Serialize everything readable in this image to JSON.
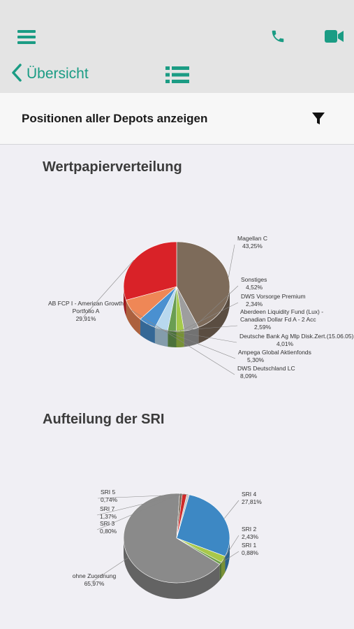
{
  "header": {
    "back_label": "Übersicht",
    "icons": [
      "menu-icon",
      "phone-icon",
      "video-icon",
      "list-icon",
      "chevron-left-icon",
      "filter-icon"
    ],
    "accent_color": "#1b9c84"
  },
  "filter": {
    "title": "Positionen aller Depots anzeigen"
  },
  "chart_data": [
    {
      "type": "pie",
      "title": "Wertpapierverteilung",
      "slices": [
        {
          "name": "Magellan C",
          "value": 43.25,
          "label": "43,25%",
          "color": "#7d6b5a"
        },
        {
          "name": "Sonstiges",
          "value": 4.52,
          "label": "4,52%",
          "color": "#9e9e9e"
        },
        {
          "name": "DWS Vorsorge Premium",
          "value": 2.34,
          "label": "2,34%",
          "color": "#a5c94a"
        },
        {
          "name": "Aberdeen Liquidity Fund (Lux) - Canadian Dollar Fd A - 2 Acc",
          "lines": [
            "Aberdeen Liquidity Fund (Lux) -",
            "Canadian Dollar Fd A - 2 Acc"
          ],
          "value": 2.59,
          "label": "2,59%",
          "color": "#6a9e52"
        },
        {
          "name": "Deutsche Bank Ag Mlp Disk.Zert.(15.06.05)",
          "value": 4.01,
          "label": "4,01%",
          "color": "#b8d8ee"
        },
        {
          "name": "Ampega Global Aktienfonds",
          "value": 5.3,
          "label": "5,30%",
          "color": "#4a90d0"
        },
        {
          "name": "DWS Deutschland LC",
          "value": 8.09,
          "label": "8,09%",
          "color": "#ef8756"
        },
        {
          "name": "AB FCP I - American Growth Portfolio A",
          "lines": [
            "AB FCP I - American Growth",
            "Portfolio A"
          ],
          "value": 29.91,
          "label": "29,91%",
          "color": "#d92228"
        }
      ]
    },
    {
      "type": "pie",
      "title": "Aufteilung der SRI",
      "slices": [
        {
          "name": "SRI 4",
          "value": 27.81,
          "label": "27,81%",
          "color": "#3d88c4"
        },
        {
          "name": "SRI 2",
          "value": 2.43,
          "label": "2,43%",
          "color": "#a8c84a"
        },
        {
          "name": "SRI 1",
          "value": 0.88,
          "label": "0,88%",
          "color": "#6f9f4a"
        },
        {
          "name": "ohne Zuordnung",
          "value": 65.97,
          "label": "65,97%",
          "color": "#8a8a8a"
        },
        {
          "name": "SRI 3",
          "value": 0.8,
          "label": "0,80%",
          "color": "#7a6a5a"
        },
        {
          "name": "SRI 7",
          "value": 1.37,
          "label": "1,37%",
          "color": "#cf2a2a"
        },
        {
          "name": "SRI 5",
          "value": 0.74,
          "label": "0,74%",
          "color": "#c8c8c8"
        }
      ]
    }
  ]
}
